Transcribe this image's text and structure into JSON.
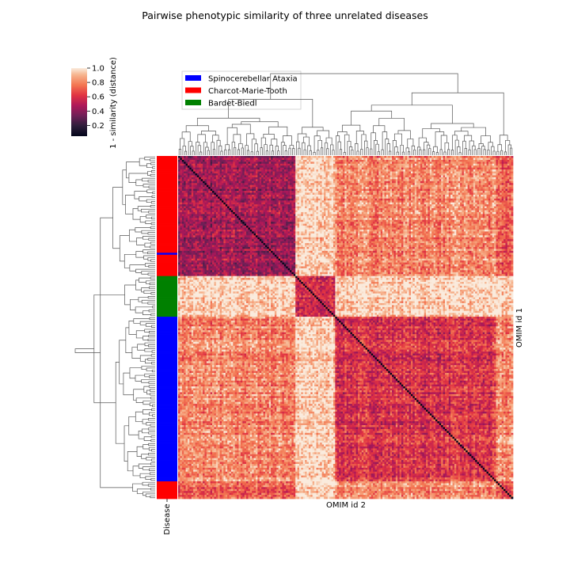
{
  "chart_data": {
    "type": "heatmap",
    "title": "Pairwise phenotypic similarity of three unrelated diseases",
    "xlabel": "OMIM id 2",
    "ylabel": "OMIM id 1",
    "row_color_label": "Disease",
    "colorbar": {
      "label": "1 - similarity (distance)",
      "ticks": [
        "0.2",
        "0.4",
        "0.6",
        "0.8",
        "1.0"
      ],
      "range": [
        0.05,
        1.0
      ]
    },
    "legend": {
      "placement": "top-left",
      "entries": [
        {
          "label": "Spinocerebellar Ataxia",
          "color": "#0000ff"
        },
        {
          "label": "Charcot-Marie-Tooth",
          "color": "#ff0000"
        },
        {
          "label": "Bardet-Biedl",
          "color": "#008000"
        }
      ]
    },
    "clusters": [
      {
        "disease": "Charcot-Marie-Tooth",
        "color": "#ff0000",
        "count": 62,
        "within_distance": 0.45,
        "includes_blue_row_at": 50
      },
      {
        "disease": "Bardet-Biedl",
        "color": "#008000",
        "count": 21,
        "within_distance": 0.55
      },
      {
        "disease": "Spinocerebellar Ataxia",
        "color": "#0000ff",
        "count": 85,
        "within_distance": 0.6
      },
      {
        "disease": "Charcot-Marie-Tooth",
        "color": "#ff0000",
        "count": 9,
        "within_distance": 0.65
      }
    ],
    "between_cluster_distance": {
      "CMT-BBS": 0.95,
      "CMT-SCA": 0.8,
      "BBS-SCA": 0.95
    },
    "diagonal_distance": 0.0,
    "grid": false
  }
}
